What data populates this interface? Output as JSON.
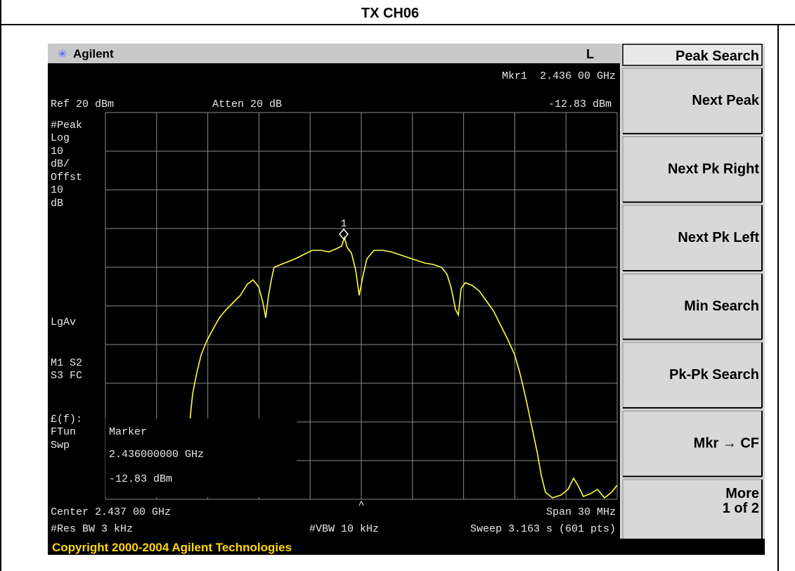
{
  "title": "TX CH06",
  "header": {
    "brand": "Agilent",
    "indicator": "L"
  },
  "screen": {
    "marker_readout": [
      "Mkr1  2.436 00 GHz",
      "-12.83 dBm"
    ],
    "ref": "Ref 20 dBm",
    "atten": "Atten 20 dB",
    "left_labels": [
      "#Peak",
      "Log",
      "10",
      "dB/",
      "Offst",
      "10",
      "dB",
      "LgAv",
      "M1  S2",
      "S3  FC",
      "£(f):",
      "FTun",
      "Swp"
    ],
    "marker_id": "1",
    "marker_box": [
      "Marker",
      "2.436000000 GHz",
      "-12.83 dBm"
    ],
    "center": "Center 2.437 00 GHz",
    "span": "Span 30 MHz",
    "res_bw": "#Res BW 3 kHz",
    "vbw": "#VBW 10 kHz",
    "sweep": "Sweep 3.163 s (601 pts)"
  },
  "softkeys": {
    "title": "Peak Search",
    "keys": [
      "Next Peak",
      "Next Pk Right",
      "Next Pk Left",
      "Min Search",
      "Pk-Pk Search",
      "Mkr → CF",
      "More"
    ],
    "more_sub": "1 of 2"
  },
  "copyright": "Copyright 2000-2004 Agilent Technologies"
}
